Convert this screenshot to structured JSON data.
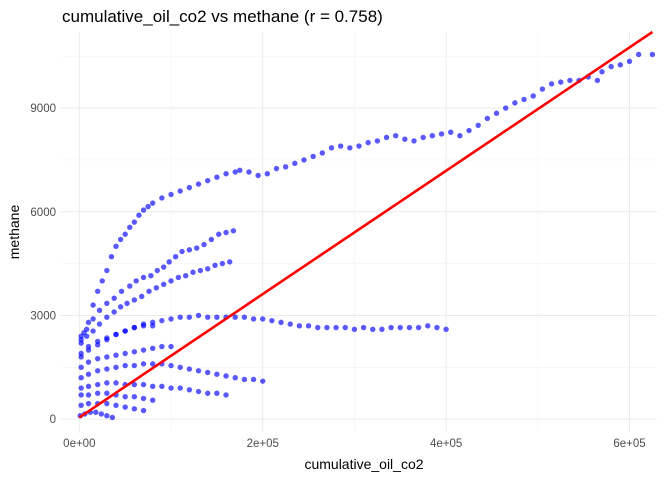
{
  "chart_data": {
    "type": "scatter",
    "title": "cumulative_oil_co2 vs methane (r = 0.758)",
    "xlabel": "cumulative_oil_co2",
    "ylabel": "methane",
    "xlim": [
      -20000,
      630000
    ],
    "ylim": [
      -400,
      11200
    ],
    "x_ticks": [
      0,
      200000,
      400000,
      600000
    ],
    "x_tick_labels": [
      "0e+00",
      "2e+05",
      "4e+05",
      "6e+05"
    ],
    "y_ticks": [
      0,
      3000,
      6000,
      9000
    ],
    "y_tick_labels": [
      "0",
      "3000",
      "6000",
      "9000"
    ],
    "grid": true,
    "legend": "none",
    "colors": {
      "points": "#0000ff",
      "fit_line": "#ff0000"
    },
    "fit_line": {
      "x": [
        0,
        625000
      ],
      "y": [
        50,
        11200
      ]
    },
    "series": [
      {
        "points": [
          [
            2000,
            2400
          ],
          [
            5000,
            2500
          ],
          [
            10000,
            2800
          ],
          [
            15000,
            3300
          ],
          [
            20000,
            3700
          ],
          [
            25000,
            4000
          ],
          [
            30000,
            4300
          ],
          [
            35000,
            4700
          ],
          [
            40000,
            5000
          ],
          [
            45000,
            5200
          ],
          [
            50000,
            5350
          ],
          [
            55000,
            5550
          ],
          [
            60000,
            5700
          ],
          [
            65000,
            5900
          ],
          [
            70000,
            6050
          ],
          [
            75000,
            6150
          ],
          [
            80000,
            6250
          ],
          [
            90000,
            6400
          ],
          [
            100000,
            6500
          ],
          [
            110000,
            6600
          ],
          [
            120000,
            6700
          ],
          [
            130000,
            6800
          ],
          [
            140000,
            6900
          ],
          [
            150000,
            7000
          ],
          [
            160000,
            7100
          ],
          [
            170000,
            7150
          ],
          [
            175000,
            7200
          ],
          [
            185000,
            7150
          ],
          [
            195000,
            7050
          ],
          [
            205000,
            7100
          ],
          [
            215000,
            7250
          ],
          [
            225000,
            7300
          ],
          [
            235000,
            7400
          ],
          [
            245000,
            7500
          ],
          [
            255000,
            7600
          ],
          [
            265000,
            7700
          ],
          [
            275000,
            7850
          ],
          [
            285000,
            7900
          ],
          [
            295000,
            7850
          ],
          [
            305000,
            7900
          ],
          [
            315000,
            8000
          ],
          [
            325000,
            8050
          ],
          [
            335000,
            8150
          ],
          [
            345000,
            8200
          ],
          [
            355000,
            8100
          ],
          [
            365000,
            8050
          ],
          [
            375000,
            8150
          ],
          [
            385000,
            8200
          ],
          [
            395000,
            8250
          ],
          [
            405000,
            8300
          ],
          [
            415000,
            8200
          ],
          [
            425000,
            8350
          ],
          [
            435000,
            8500
          ],
          [
            445000,
            8700
          ],
          [
            455000,
            8850
          ],
          [
            465000,
            9000
          ],
          [
            475000,
            9150
          ],
          [
            485000,
            9250
          ],
          [
            495000,
            9350
          ],
          [
            505000,
            9550
          ],
          [
            515000,
            9700
          ],
          [
            525000,
            9750
          ],
          [
            535000,
            9800
          ],
          [
            545000,
            9800
          ],
          [
            555000,
            9900
          ],
          [
            565000,
            9800
          ],
          [
            570000,
            10050
          ],
          [
            580000,
            10200
          ],
          [
            590000,
            10250
          ],
          [
            600000,
            10350
          ],
          [
            610000,
            10550
          ],
          [
            625000,
            10550
          ]
        ]
      },
      {
        "points": [
          [
            2000,
            2300
          ],
          [
            8000,
            2600
          ],
          [
            15000,
            2900
          ],
          [
            22000,
            3150
          ],
          [
            30000,
            3350
          ],
          [
            38000,
            3500
          ],
          [
            46000,
            3700
          ],
          [
            55000,
            3850
          ],
          [
            62000,
            4000
          ],
          [
            70000,
            4100
          ],
          [
            78000,
            4150
          ],
          [
            85000,
            4300
          ],
          [
            92000,
            4400
          ],
          [
            98000,
            4550
          ],
          [
            105000,
            4700
          ],
          [
            112000,
            4850
          ],
          [
            120000,
            4900
          ],
          [
            128000,
            4950
          ],
          [
            136000,
            5050
          ],
          [
            144000,
            5200
          ],
          [
            152000,
            5350
          ],
          [
            160000,
            5400
          ],
          [
            168000,
            5450
          ]
        ]
      },
      {
        "points": [
          [
            2000,
            2200
          ],
          [
            8000,
            2400
          ],
          [
            15000,
            2550
          ],
          [
            22000,
            2750
          ],
          [
            30000,
            2950
          ],
          [
            38000,
            3100
          ],
          [
            45000,
            3250
          ],
          [
            52000,
            3350
          ],
          [
            60000,
            3450
          ],
          [
            68000,
            3550
          ],
          [
            76000,
            3700
          ],
          [
            84000,
            3800
          ],
          [
            92000,
            3900
          ],
          [
            100000,
            4000
          ],
          [
            108000,
            4100
          ],
          [
            116000,
            4150
          ],
          [
            124000,
            4250
          ],
          [
            132000,
            4300
          ],
          [
            140000,
            4350
          ],
          [
            148000,
            4450
          ],
          [
            156000,
            4500
          ],
          [
            164000,
            4550
          ]
        ]
      },
      {
        "points": [
          [
            2000,
            1800
          ],
          [
            10000,
            2000
          ],
          [
            20000,
            2150
          ],
          [
            30000,
            2300
          ],
          [
            40000,
            2450
          ],
          [
            50000,
            2550
          ],
          [
            60000,
            2650
          ],
          [
            70000,
            2750
          ],
          [
            80000,
            2800
          ],
          [
            90000,
            2850
          ],
          [
            100000,
            2900
          ],
          [
            110000,
            2950
          ],
          [
            120000,
            2950
          ],
          [
            130000,
            3000
          ],
          [
            140000,
            2950
          ],
          [
            150000,
            2950
          ],
          [
            160000,
            2950
          ],
          [
            170000,
            2950
          ],
          [
            180000,
            2950
          ],
          [
            190000,
            2900
          ],
          [
            200000,
            2900
          ],
          [
            210000,
            2850
          ],
          [
            220000,
            2800
          ],
          [
            230000,
            2750
          ],
          [
            240000,
            2700
          ],
          [
            250000,
            2700
          ],
          [
            260000,
            2650
          ],
          [
            270000,
            2650
          ],
          [
            280000,
            2650
          ],
          [
            290000,
            2650
          ],
          [
            300000,
            2600
          ],
          [
            310000,
            2650
          ],
          [
            320000,
            2600
          ],
          [
            330000,
            2600
          ],
          [
            340000,
            2650
          ],
          [
            350000,
            2650
          ],
          [
            360000,
            2650
          ],
          [
            370000,
            2650
          ],
          [
            380000,
            2700
          ],
          [
            390000,
            2650
          ],
          [
            400000,
            2600
          ]
        ]
      },
      {
        "points": [
          [
            2000,
            1900
          ],
          [
            10000,
            2100
          ],
          [
            20000,
            2250
          ],
          [
            30000,
            2350
          ],
          [
            40000,
            2450
          ],
          [
            50000,
            2550
          ],
          [
            60000,
            2650
          ],
          [
            70000,
            2700
          ],
          [
            80000,
            2700
          ]
        ]
      },
      {
        "points": [
          [
            2000,
            1500
          ],
          [
            10000,
            1650
          ],
          [
            20000,
            1750
          ],
          [
            30000,
            1800
          ],
          [
            40000,
            1850
          ],
          [
            50000,
            1900
          ],
          [
            60000,
            1950
          ],
          [
            70000,
            2000
          ],
          [
            80000,
            2050
          ],
          [
            90000,
            2100
          ],
          [
            100000,
            2100
          ]
        ]
      },
      {
        "points": [
          [
            2000,
            1200
          ],
          [
            10000,
            1300
          ],
          [
            20000,
            1400
          ],
          [
            30000,
            1450
          ],
          [
            40000,
            1500
          ],
          [
            50000,
            1550
          ],
          [
            60000,
            1550
          ],
          [
            70000,
            1600
          ],
          [
            80000,
            1600
          ],
          [
            90000,
            1600
          ],
          [
            100000,
            1550
          ],
          [
            110000,
            1500
          ],
          [
            120000,
            1450
          ],
          [
            130000,
            1400
          ],
          [
            140000,
            1350
          ],
          [
            150000,
            1300
          ],
          [
            160000,
            1250
          ],
          [
            170000,
            1200
          ],
          [
            180000,
            1150
          ],
          [
            190000,
            1150
          ],
          [
            200000,
            1100
          ]
        ]
      },
      {
        "points": [
          [
            2000,
            900
          ],
          [
            10000,
            950
          ],
          [
            20000,
            1000
          ],
          [
            30000,
            1050
          ],
          [
            40000,
            1050
          ],
          [
            50000,
            1000
          ],
          [
            60000,
            1000
          ],
          [
            70000,
            1000
          ],
          [
            80000,
            950
          ],
          [
            90000,
            950
          ],
          [
            100000,
            900
          ],
          [
            110000,
            900
          ],
          [
            120000,
            850
          ],
          [
            130000,
            800
          ],
          [
            140000,
            750
          ],
          [
            150000,
            750
          ],
          [
            160000,
            700
          ]
        ]
      },
      {
        "points": [
          [
            2000,
            700
          ],
          [
            10000,
            700
          ],
          [
            20000,
            750
          ],
          [
            30000,
            750
          ],
          [
            40000,
            700
          ],
          [
            50000,
            650
          ],
          [
            60000,
            650
          ],
          [
            70000,
            600
          ],
          [
            80000,
            550
          ]
        ]
      },
      {
        "points": [
          [
            2000,
            400
          ],
          [
            10000,
            450
          ],
          [
            20000,
            450
          ],
          [
            30000,
            450
          ],
          [
            40000,
            400
          ],
          [
            50000,
            350
          ],
          [
            60000,
            300
          ],
          [
            70000,
            250
          ]
        ]
      },
      {
        "points": [
          [
            1000,
            100
          ],
          [
            6000,
            150
          ],
          [
            12000,
            200
          ],
          [
            18000,
            200
          ],
          [
            24000,
            150
          ],
          [
            30000,
            100
          ],
          [
            36000,
            50
          ]
        ]
      }
    ]
  }
}
